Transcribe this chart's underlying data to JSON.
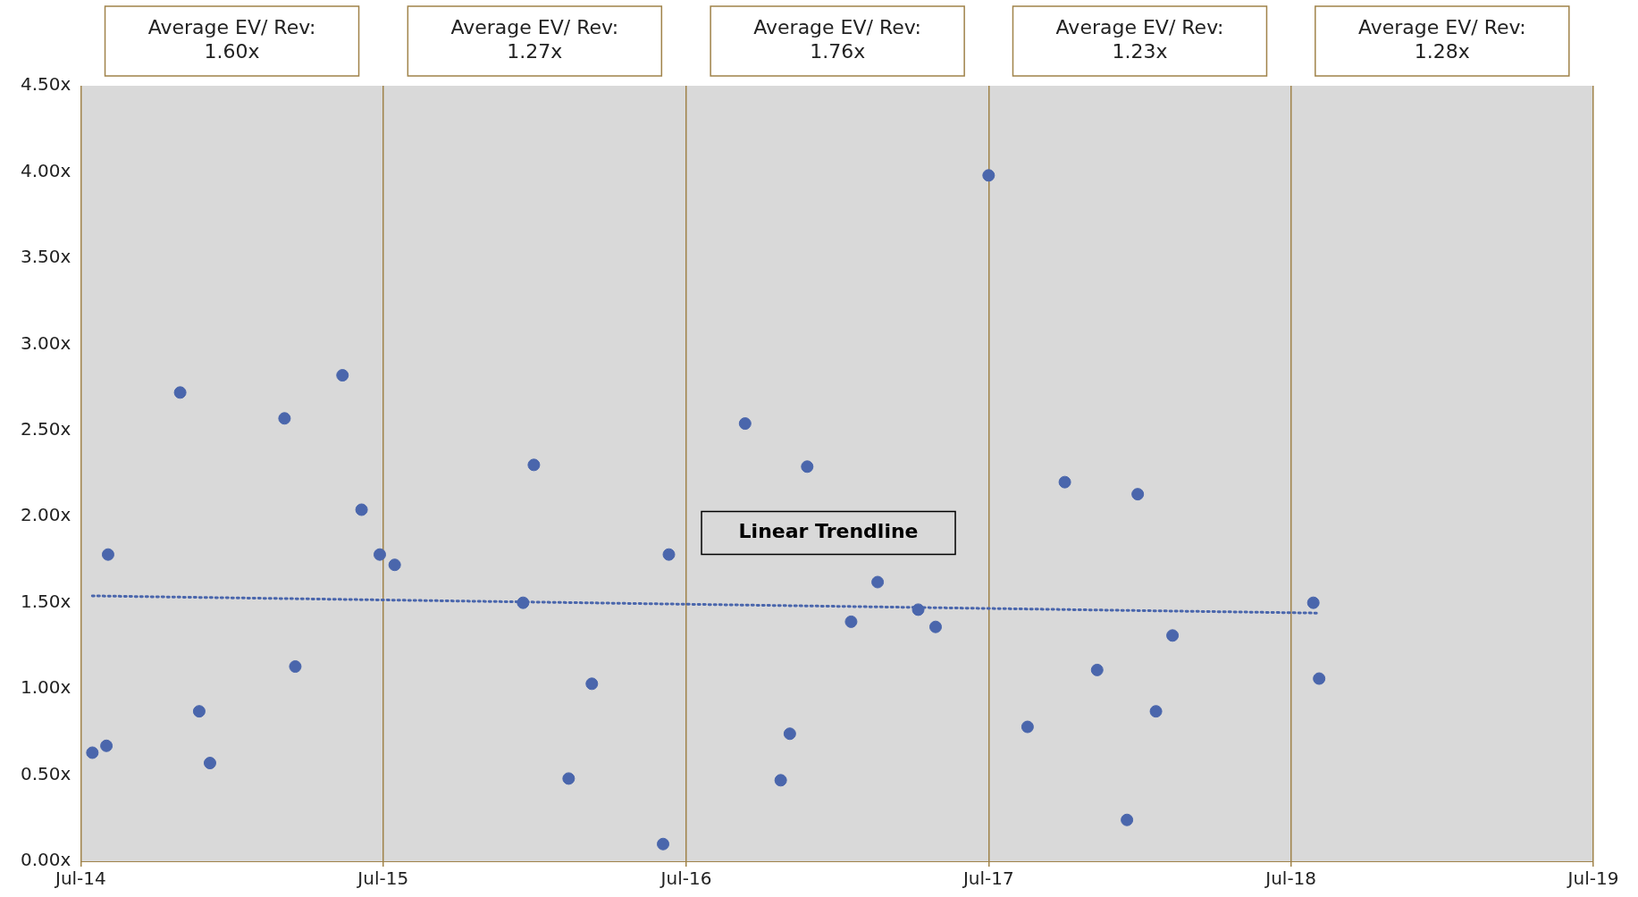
{
  "chart_data": {
    "type": "scatter",
    "marker": "circle",
    "grid": "x",
    "legend": false,
    "annotations": [
      "Average EV/ Rev:\n1.60x",
      "Average EV/ Rev:\n1.27x",
      "Average EV/ Rev:\n1.76x",
      "Average EV/ Rev:\n1.23x",
      "Average EV/ Rev:\n1.28x"
    ],
    "xlim": [
      "2014-07-01",
      "2019-07-01"
    ],
    "xticks": [
      {
        "value": "2014-07-01",
        "label": "Jul-14"
      },
      {
        "value": "2015-07-01",
        "label": "Jul-15"
      },
      {
        "value": "2016-07-01",
        "label": "Jul-16"
      },
      {
        "value": "2017-07-01",
        "label": "Jul-17"
      },
      {
        "value": "2018-07-01",
        "label": "Jul-18"
      },
      {
        "value": "2019-07-01",
        "label": "Jul-19"
      }
    ],
    "ylim": [
      0,
      4.5
    ],
    "yticks": [
      {
        "value": 0,
        "label": "0.00x"
      },
      {
        "value": 0.5,
        "label": "0.50x"
      },
      {
        "value": 1,
        "label": "1.00x"
      },
      {
        "value": 1.5,
        "label": "1.50x"
      },
      {
        "value": 2,
        "label": "2.00x"
      },
      {
        "value": 2.5,
        "label": "2.50x"
      },
      {
        "value": 3,
        "label": "3.00x"
      },
      {
        "value": 3.5,
        "label": "3.50x"
      },
      {
        "value": 4,
        "label": "4.00x"
      },
      {
        "value": 4.5,
        "label": "4.50x"
      }
    ],
    "series": [
      {
        "color": "#4a66ac",
        "x": [
          "2014-07-15",
          "2014-08-01",
          "2014-08-03",
          "2014-10-29",
          "2014-11-21",
          "2014-12-04",
          "2015-03-04",
          "2015-03-17",
          "2015-05-13",
          "2015-06-05",
          "2015-06-27",
          "2015-07-15",
          "2015-12-17",
          "2015-12-30",
          "2016-02-10",
          "2016-03-09",
          "2016-06-03",
          "2016-06-10",
          "2016-09-10",
          "2016-10-23",
          "2016-11-03",
          "2016-11-24",
          "2017-01-16",
          "2017-02-17",
          "2017-04-07",
          "2017-04-28",
          "2017-07-01",
          "2017-08-17",
          "2017-10-01",
          "2017-11-09",
          "2017-12-15",
          "2017-12-28",
          "2018-01-19",
          "2018-02-08",
          "2018-07-28",
          "2018-08-04"
        ],
        "values": [
          0.63,
          0.67,
          1.78,
          2.72,
          0.87,
          0.57,
          2.57,
          1.13,
          2.82,
          2.04,
          1.78,
          1.72,
          1.5,
          2.3,
          0.48,
          1.03,
          0.1,
          1.78,
          2.54,
          0.47,
          0.74,
          2.29,
          1.39,
          1.62,
          1.46,
          1.36,
          3.98,
          0.78,
          2.2,
          1.11,
          0.24,
          2.13,
          0.87,
          1.31,
          1.5,
          1.06
        ]
      },
      {
        "type": "line",
        "name": "Linear Trendline",
        "color": "#4a66ac",
        "line_style": "dotted",
        "marker": "none",
        "x": [
          "2014-07-15",
          "2018-08-04"
        ],
        "values": [
          1.54,
          1.44
        ]
      }
    ]
  }
}
